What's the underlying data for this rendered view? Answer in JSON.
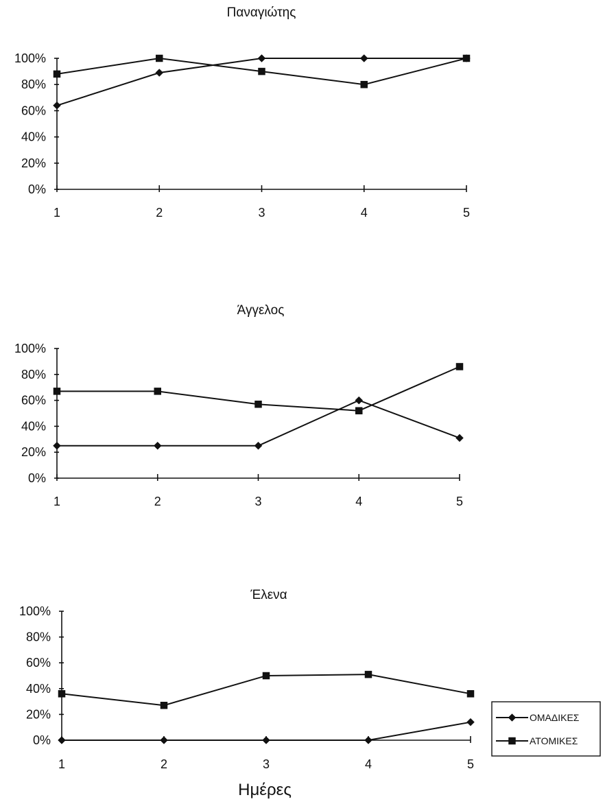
{
  "chart_data": [
    {
      "type": "line",
      "title": "Παναγιώτης",
      "x": [
        1,
        2,
        3,
        4,
        5
      ],
      "ylim": [
        0,
        100
      ],
      "yticks": [
        "0%",
        "20%",
        "40%",
        "60%",
        "80%",
        "100%"
      ],
      "xticks": [
        "1",
        "2",
        "3",
        "4",
        "5"
      ],
      "grid": false,
      "series": [
        {
          "name": "ΟΜΑΔΙΚΕΣ",
          "marker": "diamond",
          "values": [
            64,
            89,
            100,
            100,
            100
          ]
        },
        {
          "name": "ΑΤΟΜΙΚΕΣ",
          "marker": "square",
          "values": [
            88,
            100,
            90,
            80,
            100
          ]
        }
      ]
    },
    {
      "type": "line",
      "title": "Άγγελος",
      "x": [
        1,
        2,
        3,
        4,
        5
      ],
      "ylim": [
        0,
        100
      ],
      "yticks": [
        "0%",
        "20%",
        "40%",
        "60%",
        "80%",
        "100%"
      ],
      "xticks": [
        "1",
        "2",
        "3",
        "4",
        "5"
      ],
      "grid": false,
      "series": [
        {
          "name": "ΟΜΑΔΙΚΕΣ",
          "marker": "diamond",
          "values": [
            25,
            25,
            25,
            60,
            31
          ]
        },
        {
          "name": "ΑΤΟΜΙΚΕΣ",
          "marker": "square",
          "values": [
            67,
            67,
            57,
            52,
            86
          ]
        }
      ]
    },
    {
      "type": "line",
      "title": "Έλενα",
      "x": [
        1,
        2,
        3,
        4,
        5
      ],
      "ylim": [
        0,
        100
      ],
      "yticks": [
        "0%",
        "20%",
        "40%",
        "60%",
        "80%",
        "100%"
      ],
      "xticks": [
        "1",
        "2",
        "3",
        "4",
        "5"
      ],
      "xlabel": "Ημέρες",
      "grid": false,
      "legend_position": "right",
      "series": [
        {
          "name": "ΟΜΑΔΙΚΕΣ",
          "marker": "diamond",
          "values": [
            0,
            0,
            0,
            0,
            14
          ]
        },
        {
          "name": "ΑΤΟΜΙΚΕΣ",
          "marker": "square",
          "values": [
            36,
            27,
            50,
            51,
            36
          ]
        }
      ]
    }
  ],
  "legend": {
    "items": [
      {
        "label": "ΟΜΑΔΙΚΕΣ",
        "marker": "diamond"
      },
      {
        "label": "ΑΤΟΜΙΚΕΣ",
        "marker": "square"
      }
    ]
  },
  "colors": {
    "ink": "#111111",
    "background": "#ffffff"
  }
}
